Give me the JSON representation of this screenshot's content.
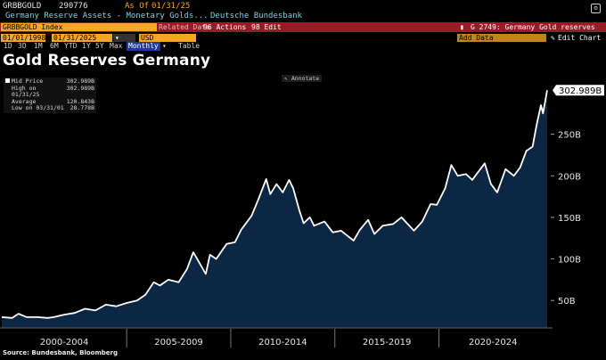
{
  "header": {
    "ticker": "GRBBGOLD",
    "last_value": "290776",
    "as_of_label": "As Of",
    "as_of_date": "01/31/25",
    "description": "Germany Reserve Assets - Monetary Golds...",
    "source_name": "Deutsche Bundesbank",
    "settings_glyph": "⚙"
  },
  "toolbar": {
    "security": "GRBBGOLD Index",
    "ghost_label": "Related Data",
    "actions_label": "96 Actions",
    "edit_label": "98 Edit",
    "function_label": "G 2749: Germany Gold reserves",
    "start_date": "01/01/1998",
    "end_date": "01/31/2025",
    "currency": "USD",
    "add_data": "Add Data",
    "edit_chart": "Edit Chart",
    "periods": [
      "1D",
      "3D",
      "1M",
      "6M",
      "YTD",
      "1Y",
      "5Y",
      "Max"
    ],
    "frequency": "Monthly",
    "table_label": "Table"
  },
  "icons": [
    "gear-icon",
    "dropdown-arrow-icon",
    "bar-chart-icon",
    "pencil-icon",
    "cursor-icon"
  ],
  "colors": {
    "orange": "#f5a623",
    "red_bar": "#9b1b24",
    "area": "#0b2744",
    "line": "#ffffff"
  },
  "title": "Gold Reserves Germany",
  "annotate_label": "Annotate",
  "legend": [
    {
      "label": "Mid Price",
      "value": "302.989B"
    },
    {
      "label": "High on 01/31/25",
      "value": "302.989B"
    },
    {
      "label": "Average",
      "value": "120.843B"
    },
    {
      "label": "Low on 03/31/01",
      "value": "28.778B"
    }
  ],
  "source": "Source: Bundesbank, Bloomberg",
  "chart_data": {
    "type": "area",
    "title": "Gold Reserves Germany",
    "unit": "B",
    "last_value_label": "302.989B",
    "y_ticks": [
      "50B",
      "100B",
      "150B",
      "200B",
      "250B"
    ],
    "y_tick_values": [
      50,
      100,
      150,
      200,
      250
    ],
    "ylim": [
      17,
      315
    ],
    "x_range": [
      1999.0,
      2025.2
    ],
    "x_groups": [
      {
        "label": "2000-2004",
        "start": 1999.0,
        "end": 2005.0
      },
      {
        "label": "2005-2009",
        "start": 2005.0,
        "end": 2010.0
      },
      {
        "label": "2010-2014",
        "start": 2010.0,
        "end": 2015.0
      },
      {
        "label": "2015-2019",
        "start": 2015.0,
        "end": 2020.0
      },
      {
        "label": "2020-2024",
        "start": 2020.0,
        "end": 2025.2
      }
    ],
    "grid": false,
    "series": [
      {
        "name": "Mid Price",
        "points": [
          [
            1999.0,
            30
          ],
          [
            1999.5,
            29
          ],
          [
            1999.8,
            34
          ],
          [
            2000.2,
            30
          ],
          [
            2000.7,
            30
          ],
          [
            2001.2,
            29
          ],
          [
            2001.5,
            30
          ],
          [
            2002.0,
            33
          ],
          [
            2002.5,
            35
          ],
          [
            2003.0,
            40
          ],
          [
            2003.5,
            38
          ],
          [
            2004.0,
            45
          ],
          [
            2004.5,
            43
          ],
          [
            2005.0,
            47
          ],
          [
            2005.5,
            50
          ],
          [
            2005.9,
            57
          ],
          [
            2006.3,
            72
          ],
          [
            2006.6,
            68
          ],
          [
            2007.0,
            75
          ],
          [
            2007.5,
            72
          ],
          [
            2007.9,
            88
          ],
          [
            2008.2,
            108
          ],
          [
            2008.5,
            95
          ],
          [
            2008.8,
            82
          ],
          [
            2009.0,
            105
          ],
          [
            2009.3,
            100
          ],
          [
            2009.8,
            118
          ],
          [
            2010.2,
            120
          ],
          [
            2010.5,
            135
          ],
          [
            2011.0,
            152
          ],
          [
            2011.3,
            170
          ],
          [
            2011.7,
            196
          ],
          [
            2011.9,
            178
          ],
          [
            2012.2,
            190
          ],
          [
            2012.5,
            180
          ],
          [
            2012.8,
            195
          ],
          [
            2013.0,
            185
          ],
          [
            2013.3,
            158
          ],
          [
            2013.5,
            143
          ],
          [
            2013.8,
            150
          ],
          [
            2014.0,
            140
          ],
          [
            2014.5,
            145
          ],
          [
            2014.9,
            132
          ],
          [
            2015.3,
            134
          ],
          [
            2015.9,
            122
          ],
          [
            2016.2,
            135
          ],
          [
            2016.6,
            147
          ],
          [
            2016.9,
            130
          ],
          [
            2017.3,
            140
          ],
          [
            2017.8,
            142
          ],
          [
            2018.2,
            150
          ],
          [
            2018.8,
            134
          ],
          [
            2019.2,
            145
          ],
          [
            2019.6,
            166
          ],
          [
            2019.9,
            165
          ],
          [
            2020.3,
            185
          ],
          [
            2020.6,
            213
          ],
          [
            2020.9,
            200
          ],
          [
            2021.3,
            202
          ],
          [
            2021.6,
            195
          ],
          [
            2021.9,
            205
          ],
          [
            2022.2,
            215
          ],
          [
            2022.5,
            190
          ],
          [
            2022.8,
            180
          ],
          [
            2023.2,
            208
          ],
          [
            2023.6,
            200
          ],
          [
            2023.9,
            210
          ],
          [
            2024.2,
            230
          ],
          [
            2024.5,
            235
          ],
          [
            2024.7,
            262
          ],
          [
            2024.9,
            285
          ],
          [
            2025.0,
            275
          ],
          [
            2025.2,
            303
          ]
        ]
      }
    ]
  }
}
